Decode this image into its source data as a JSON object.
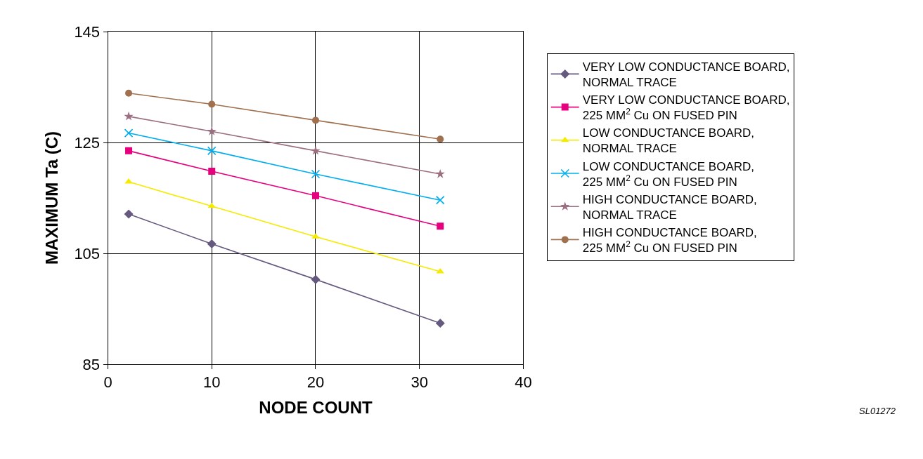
{
  "chart_data": {
    "type": "line",
    "xlabel": "NODE COUNT",
    "ylabel": "MAXIMUM Ta (C)",
    "x": [
      2,
      10,
      20,
      32
    ],
    "series": [
      {
        "name": "VERY LOW CONDUCTANCE BOARD,\nNORMAL TRACE",
        "color": "#66597f",
        "marker": "diamond",
        "values": [
          112.1,
          106.7,
          100.3,
          92.4
        ]
      },
      {
        "name": "VERY LOW CONDUCTANCE BOARD,\n225 MM$^{2}$ Cu ON FUSED PIN",
        "color": "#e6007e",
        "marker": "square",
        "values": [
          123.5,
          119.8,
          115.4,
          109.9
        ]
      },
      {
        "name": "LOW CONDUCTANCE BOARD,\nNORMAL TRACE",
        "color": "#f5eb00",
        "marker": "triangle",
        "values": [
          117.9,
          113.5,
          108.0,
          101.7
        ]
      },
      {
        "name": "LOW CONDUCTANCE BOARD,\n225 MM$^{2}$ Cu ON FUSED PIN",
        "color": "#00aeef",
        "marker": "cross",
        "values": [
          126.7,
          123.5,
          119.3,
          114.6
        ]
      },
      {
        "name": "HIGH CONDUCTANCE BOARD,\nNORMAL TRACE",
        "color": "#9c6f80",
        "marker": "star",
        "values": [
          129.7,
          127.0,
          123.5,
          119.3
        ]
      },
      {
        "name": "HIGH CONDUCTANCE BOARD,\n225 MM$^{2}$ Cu ON FUSED PIN",
        "color": "#a0714f",
        "marker": "circle",
        "values": [
          133.9,
          131.9,
          129.0,
          125.6
        ]
      }
    ],
    "xlim": [
      0,
      40
    ],
    "xticks": [
      0,
      10,
      20,
      30,
      40
    ],
    "ylim": [
      85,
      145
    ],
    "yticks": [
      85,
      105,
      125,
      145
    ],
    "grid": true,
    "legend": "right",
    "line_style": "solid",
    "annotations": [
      "SL01272"
    ]
  }
}
